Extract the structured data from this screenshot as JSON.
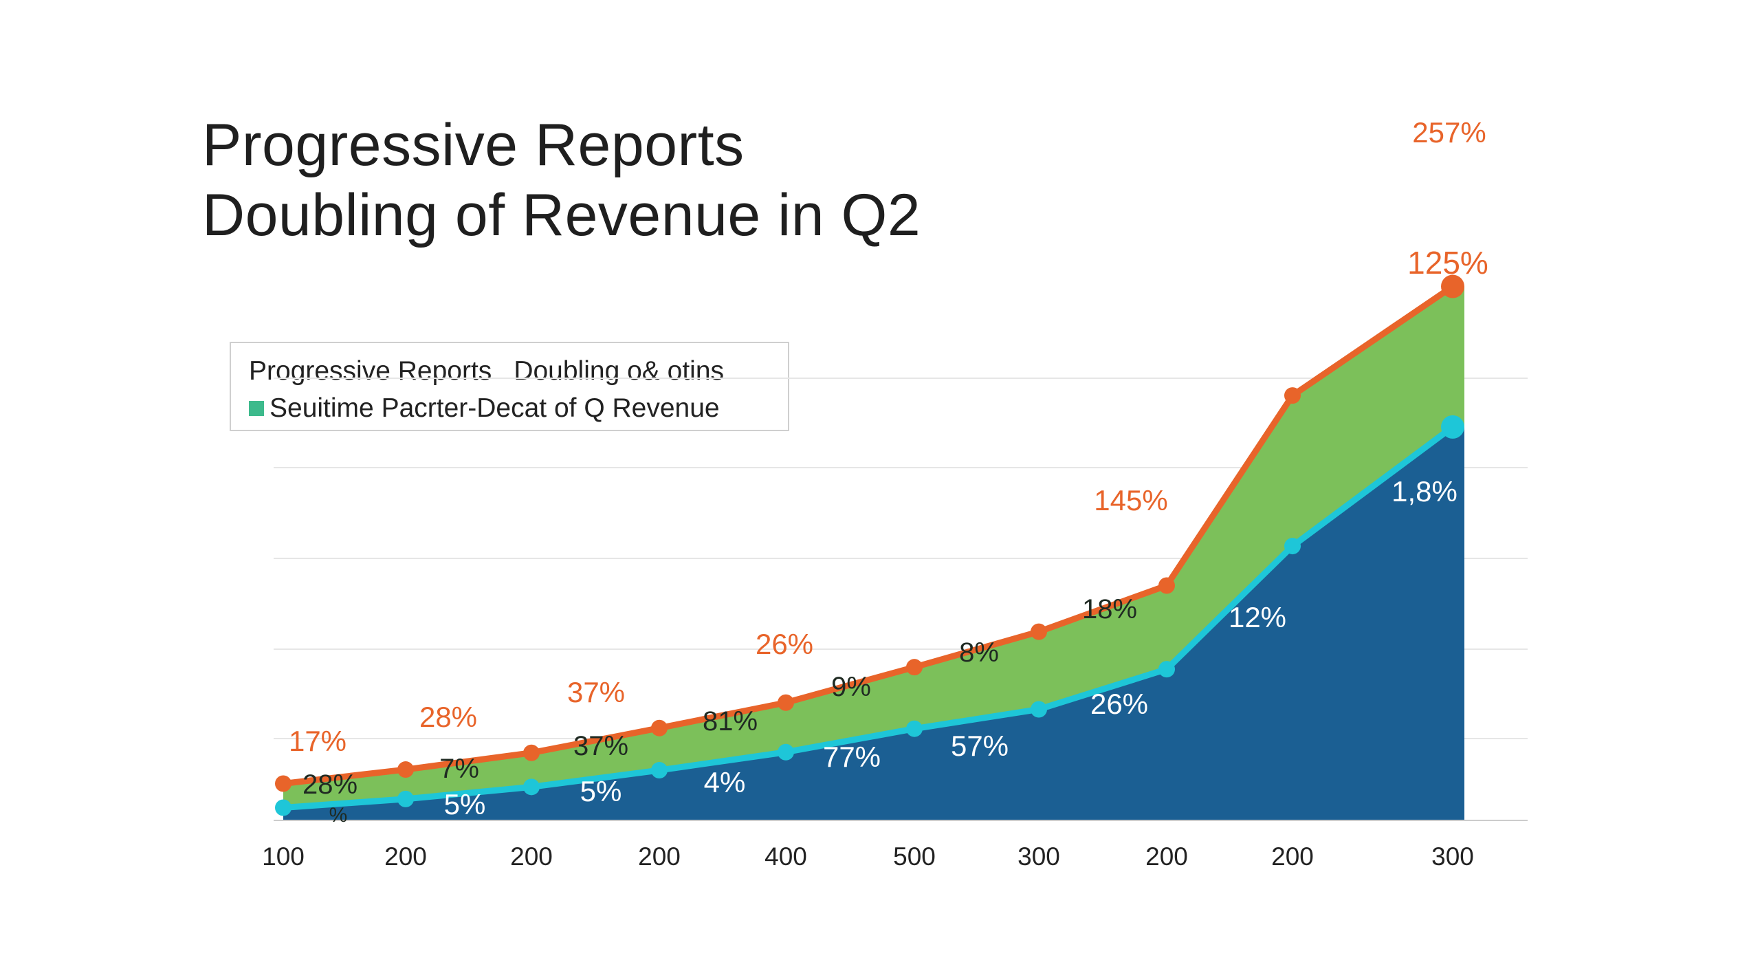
{
  "title": {
    "line1": "Progressive Reports",
    "line2": "Doubling of Revenue in Q2"
  },
  "legend": {
    "row1_a": "Progressive Reports",
    "row1_b": "Doubling o& otins",
    "row2": "Seuitime Pacrter-Decat of Q Revenue",
    "swatch_color": "#3dba8c"
  },
  "colors": {
    "upper_line": "#e8642a",
    "upper_fill": "#7cc05a",
    "lower_line": "#1ec6d8",
    "lower_fill": "#1b5f93",
    "grid": "#e6e6e6",
    "axis": "#cccccc"
  },
  "chart_data": {
    "type": "area",
    "categories": [
      "100",
      "200",
      "200",
      "200",
      "400",
      "500",
      "300",
      "200",
      "200",
      "300"
    ],
    "ylim": [
      0,
      100
    ],
    "grid": true,
    "legend_position": "top-left",
    "series": [
      {
        "role": "upper",
        "values": [
          5.5,
          7.6,
          10.1,
          13.8,
          17.6,
          22.9,
          28.2,
          35.1,
          63.5,
          79.8
        ],
        "point_labels": [
          "17%",
          "28%",
          "37%",
          "",
          "26%",
          "",
          "",
          "145%",
          "",
          "257%"
        ]
      },
      {
        "role": "lower",
        "values": [
          1.9,
          3.2,
          5.0,
          7.5,
          10.2,
          13.7,
          16.6,
          22.6,
          41.0,
          58.8
        ]
      }
    ],
    "band_labels": [
      "28%",
      "7%",
      "37%",
      "81%",
      "9%",
      "8%",
      "18%",
      "125%"
    ],
    "area_labels": [
      "%",
      "5%",
      "5%",
      "4%",
      "77%",
      "57%",
      "26%",
      "12%",
      "1,8%"
    ]
  }
}
